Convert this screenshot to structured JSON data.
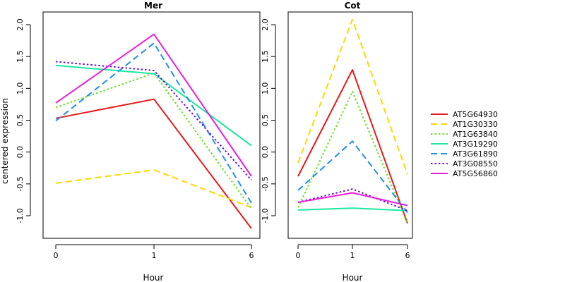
{
  "figure": {
    "ylabel": "centered expression",
    "legend_position": "right",
    "legend": [
      {
        "label": "AT5G64930",
        "color": "#E41A1C",
        "dash": "solid"
      },
      {
        "label": "AT1G30330",
        "color": "#FFD700",
        "dash": "dashed"
      },
      {
        "label": "AT1G63840",
        "color": "#66E01F",
        "dash": "dotted"
      },
      {
        "label": "AT3G19290",
        "color": "#1AE8A0",
        "dash": "solid"
      },
      {
        "label": "AT3G61890",
        "color": "#1E90E8",
        "dash": "dashed"
      },
      {
        "label": "AT3G08550",
        "color": "#6A0DD8",
        "dash": "dotted"
      },
      {
        "label": "AT5G56860",
        "color": "#E620D8",
        "dash": "solid"
      }
    ]
  },
  "chart_data": [
    {
      "type": "line",
      "title": "Mer",
      "xlabel": "Hour",
      "ylabel": "centered expression",
      "x": [
        "0",
        "1",
        "6"
      ],
      "ylim": [
        -1.3,
        2.2
      ],
      "yticks": [
        -1.0,
        -0.5,
        0.0,
        0.5,
        1.0,
        1.5,
        2.0
      ],
      "ytick_labels": [
        "-1.0",
        "-0.5",
        "0.0",
        "0.5",
        "1.0",
        "1.5",
        "2.0"
      ],
      "grid": false,
      "series": [
        {
          "name": "AT5G64930",
          "values": [
            0.53,
            0.83,
            -1.2
          ]
        },
        {
          "name": "AT1G30330",
          "values": [
            -0.49,
            -0.28,
            -0.87
          ]
        },
        {
          "name": "AT1G63840",
          "values": [
            0.7,
            1.24,
            -0.89
          ]
        },
        {
          "name": "AT3G19290",
          "values": [
            1.36,
            1.23,
            0.1
          ]
        },
        {
          "name": "AT3G61890",
          "values": [
            0.49,
            1.71,
            -0.8
          ]
        },
        {
          "name": "AT3G08550",
          "values": [
            1.42,
            1.28,
            -0.44
          ]
        },
        {
          "name": "AT5G56860",
          "values": [
            0.77,
            1.85,
            -0.38
          ]
        }
      ]
    },
    {
      "type": "line",
      "title": "Cot",
      "xlabel": "Hour",
      "ylabel": "",
      "x": [
        "0",
        "1",
        "6"
      ],
      "ylim": [
        -1.2,
        2.2
      ],
      "yticks": [
        -1.0,
        -0.5,
        0.0,
        0.5,
        1.0,
        1.5,
        2.0
      ],
      "ytick_labels": [
        "-1.0",
        "-0.5",
        "0.0",
        "0.5",
        "1.0",
        "1.5",
        "2.0"
      ],
      "grid": false,
      "series": [
        {
          "name": "AT5G64930",
          "values": [
            -0.38,
            1.29,
            -1.12
          ]
        },
        {
          "name": "AT1G30330",
          "values": [
            -0.17,
            2.08,
            -0.35
          ]
        },
        {
          "name": "AT1G63840",
          "values": [
            -0.87,
            0.95,
            -1.13
          ]
        },
        {
          "name": "AT3G19290",
          "values": [
            -0.91,
            -0.88,
            -0.92
          ]
        },
        {
          "name": "AT3G61890",
          "values": [
            -0.6,
            0.17,
            -0.95
          ]
        },
        {
          "name": "AT3G08550",
          "values": [
            -0.79,
            -0.58,
            -0.92
          ]
        },
        {
          "name": "AT5G56860",
          "values": [
            -0.79,
            -0.64,
            -0.84
          ]
        }
      ]
    }
  ]
}
